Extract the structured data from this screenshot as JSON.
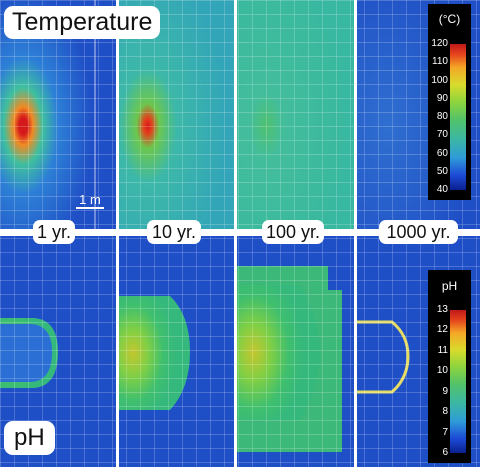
{
  "rows": {
    "temperature": {
      "title": "Temperature"
    },
    "ph": {
      "title": "pH"
    }
  },
  "times": [
    "1 yr.",
    "10 yr.",
    "100 yr.",
    "1000 yr."
  ],
  "scale_bar": {
    "label": "1 m"
  },
  "colorbars": {
    "temperature": {
      "unit": "(°C)",
      "ticks": [
        "120",
        "110",
        "100",
        "90",
        "80",
        "70",
        "60",
        "50",
        "40"
      ]
    },
    "ph": {
      "unit": "pH",
      "ticks": [
        "13",
        "12",
        "11",
        "10",
        "9",
        "8",
        "7",
        "6"
      ]
    }
  },
  "colors": {
    "background_blue": "#1e4fc4",
    "mesh_lines": "#ffffff",
    "frame_white": "#ffffff"
  }
}
